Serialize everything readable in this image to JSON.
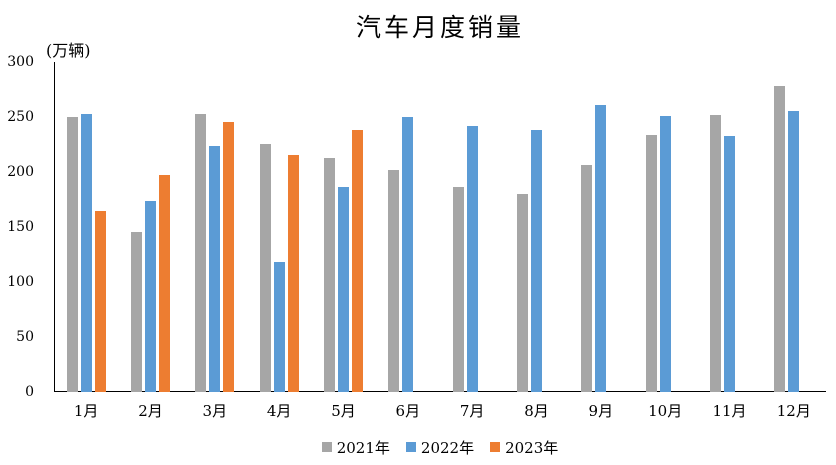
{
  "title": "汽车月度销量",
  "y_axis_unit_label": "(万辆)",
  "colors": {
    "series_2021": "#A6A6A6",
    "series_2022": "#5B9BD5",
    "series_2023": "#ED7D31",
    "axis": "#000000",
    "background": "#FFFFFF"
  },
  "chart_data": {
    "type": "bar",
    "title": "汽车月度销量",
    "unit_label": "(万辆)",
    "categories": [
      "1月",
      "2月",
      "3月",
      "4月",
      "5月",
      "6月",
      "7月",
      "8月",
      "9月",
      "10月",
      "11月",
      "12月"
    ],
    "series": [
      {
        "name": "2021年",
        "color": "#A6A6A6",
        "values": [
          250.3,
          145.5,
          252.6,
          225.2,
          212.8,
          201.5,
          186.4,
          179.9,
          206.7,
          233.3,
          252.2,
          278.6
        ]
      },
      {
        "name": "2022年",
        "color": "#5B9BD5",
        "values": [
          253.1,
          173.7,
          223.4,
          118.1,
          186.2,
          250.2,
          242.0,
          238.3,
          261.0,
          250.5,
          232.8,
          255.6
        ]
      },
      {
        "name": "2023年",
        "color": "#ED7D31",
        "values": [
          164.9,
          197.6,
          245.1,
          215.9,
          238.2,
          null,
          null,
          null,
          null,
          null,
          null,
          null
        ]
      }
    ],
    "xlabel": "",
    "ylabel": "(万辆)",
    "ylim": [
      0,
      300
    ],
    "yticks": [
      0,
      50,
      100,
      150,
      200,
      250,
      300
    ],
    "grid": false,
    "legend_position": "bottom"
  }
}
